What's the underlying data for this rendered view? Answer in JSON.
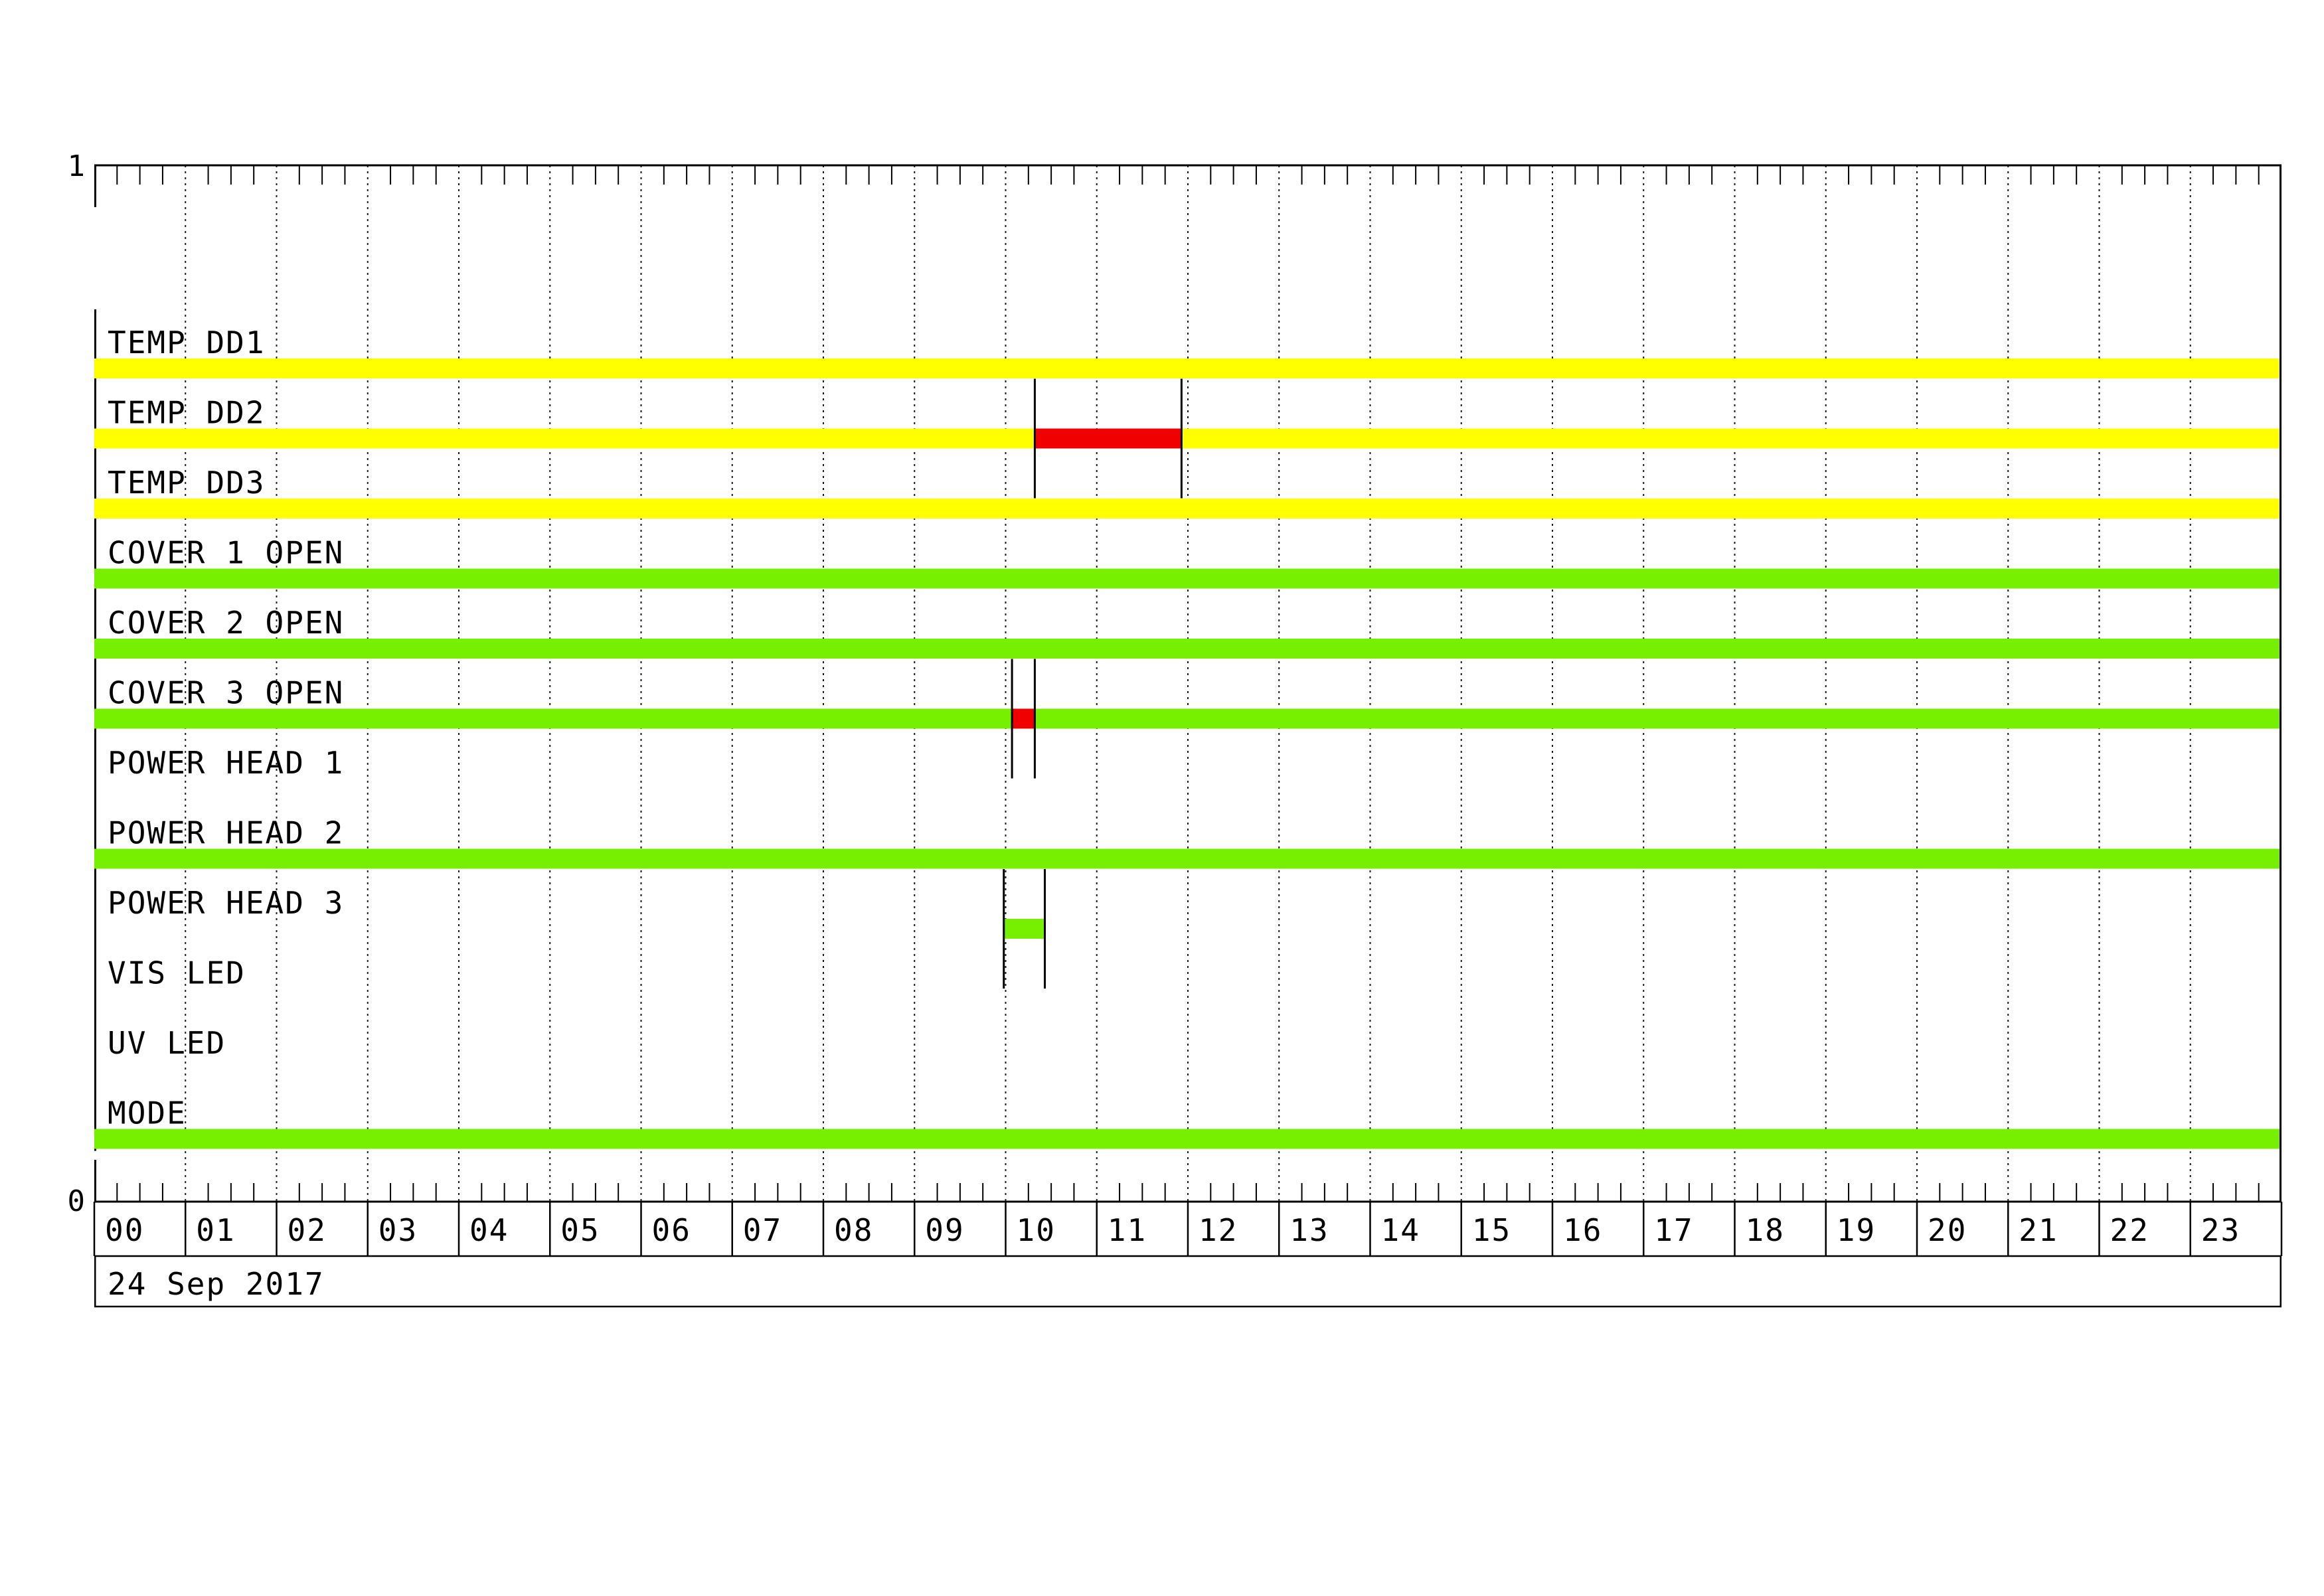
{
  "chart_data": {
    "type": "timeline",
    "title": "",
    "date_label": "24 Sep 2017",
    "x_axis": {
      "unit": "hours",
      "range": [
        0,
        24
      ],
      "tick_labels": [
        "00",
        "01",
        "02",
        "03",
        "04",
        "05",
        "06",
        "07",
        "08",
        "09",
        "10",
        "11",
        "12",
        "13",
        "14",
        "15",
        "16",
        "17",
        "18",
        "19",
        "20",
        "21",
        "22",
        "23"
      ],
      "minor_tick_minutes": 15,
      "gridlines": "hourly-dotted"
    },
    "y_axis": {
      "top_label": "1",
      "bottom_label": "0"
    },
    "colors": {
      "yellow": "#ffff00",
      "green": "#77f000",
      "red": "#f00000",
      "line": "#000000"
    },
    "rows": [
      {
        "label": "TEMP DD1",
        "segments": [
          {
            "start": 0,
            "end": 24,
            "color": "yellow"
          }
        ],
        "event_markers": []
      },
      {
        "label": "TEMP DD2",
        "segments": [
          {
            "start": 0,
            "end": 10.32,
            "color": "yellow"
          },
          {
            "start": 10.32,
            "end": 11.93,
            "color": "red"
          },
          {
            "start": 11.93,
            "end": 24,
            "color": "yellow"
          }
        ],
        "event_markers": [
          10.32,
          11.93
        ]
      },
      {
        "label": "TEMP DD3",
        "segments": [
          {
            "start": 0,
            "end": 24,
            "color": "yellow"
          }
        ],
        "event_markers": []
      },
      {
        "label": "COVER 1 OPEN",
        "segments": [
          {
            "start": 0,
            "end": 24,
            "color": "green"
          }
        ],
        "event_markers": []
      },
      {
        "label": "COVER 2 OPEN",
        "segments": [
          {
            "start": 0,
            "end": 24,
            "color": "green"
          }
        ],
        "event_markers": []
      },
      {
        "label": "COVER 3 OPEN",
        "segments": [
          {
            "start": 0,
            "end": 10.07,
            "color": "green"
          },
          {
            "start": 10.07,
            "end": 10.32,
            "color": "red"
          },
          {
            "start": 10.32,
            "end": 24,
            "color": "green"
          }
        ],
        "event_markers": [
          10.07,
          10.32
        ]
      },
      {
        "label": "POWER HEAD 1",
        "segments": [],
        "event_markers": []
      },
      {
        "label": "POWER HEAD 2",
        "segments": [
          {
            "start": 0,
            "end": 24,
            "color": "green"
          }
        ],
        "event_markers": []
      },
      {
        "label": "POWER HEAD 3",
        "segments": [
          {
            "start": 9.98,
            "end": 10.43,
            "color": "green"
          }
        ],
        "event_markers": [
          9.98,
          10.43
        ]
      },
      {
        "label": "VIS LED",
        "segments": [],
        "event_markers": []
      },
      {
        "label": "UV LED",
        "segments": [],
        "event_markers": []
      },
      {
        "label": "MODE",
        "segments": [
          {
            "start": 0,
            "end": 24,
            "color": "green"
          }
        ],
        "event_markers": []
      }
    ]
  }
}
